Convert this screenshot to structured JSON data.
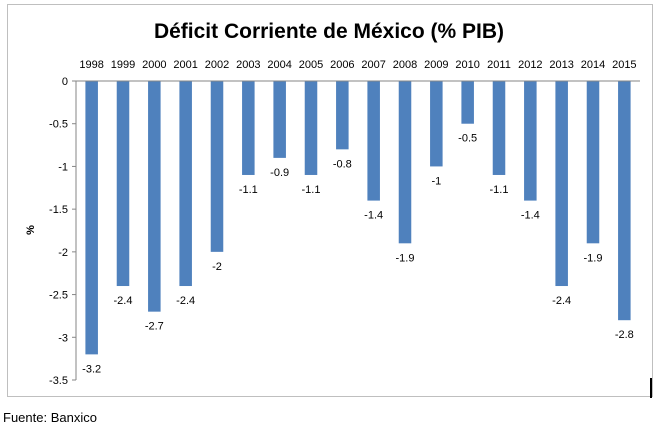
{
  "chart_data": {
    "type": "bar",
    "title": "Déficit Corriente de México (% PIB)",
    "xlabel": "",
    "ylabel": "%",
    "ylim": [
      -3.5,
      0
    ],
    "yticks": [
      "0",
      "-0.5",
      "-1",
      "-1.5",
      "-2",
      "-2.5",
      "-3",
      "-3.5"
    ],
    "categories": [
      "1998",
      "1999",
      "2000",
      "2001",
      "2002",
      "2003",
      "2004",
      "2005",
      "2006",
      "2007",
      "2008",
      "2009",
      "2010",
      "2011",
      "2012",
      "2013",
      "2014",
      "2015"
    ],
    "values": [
      -3.2,
      -2.4,
      -2.7,
      -2.4,
      -2,
      -1.1,
      -0.9,
      -1.1,
      -0.8,
      -1.4,
      -1.9,
      -1,
      -0.5,
      -1.1,
      -1.4,
      -2.4,
      -1.9,
      -2.8
    ],
    "bar_color": "#4f81bd",
    "grid": false,
    "legend": "none"
  },
  "source": "Fuente: Banxico"
}
